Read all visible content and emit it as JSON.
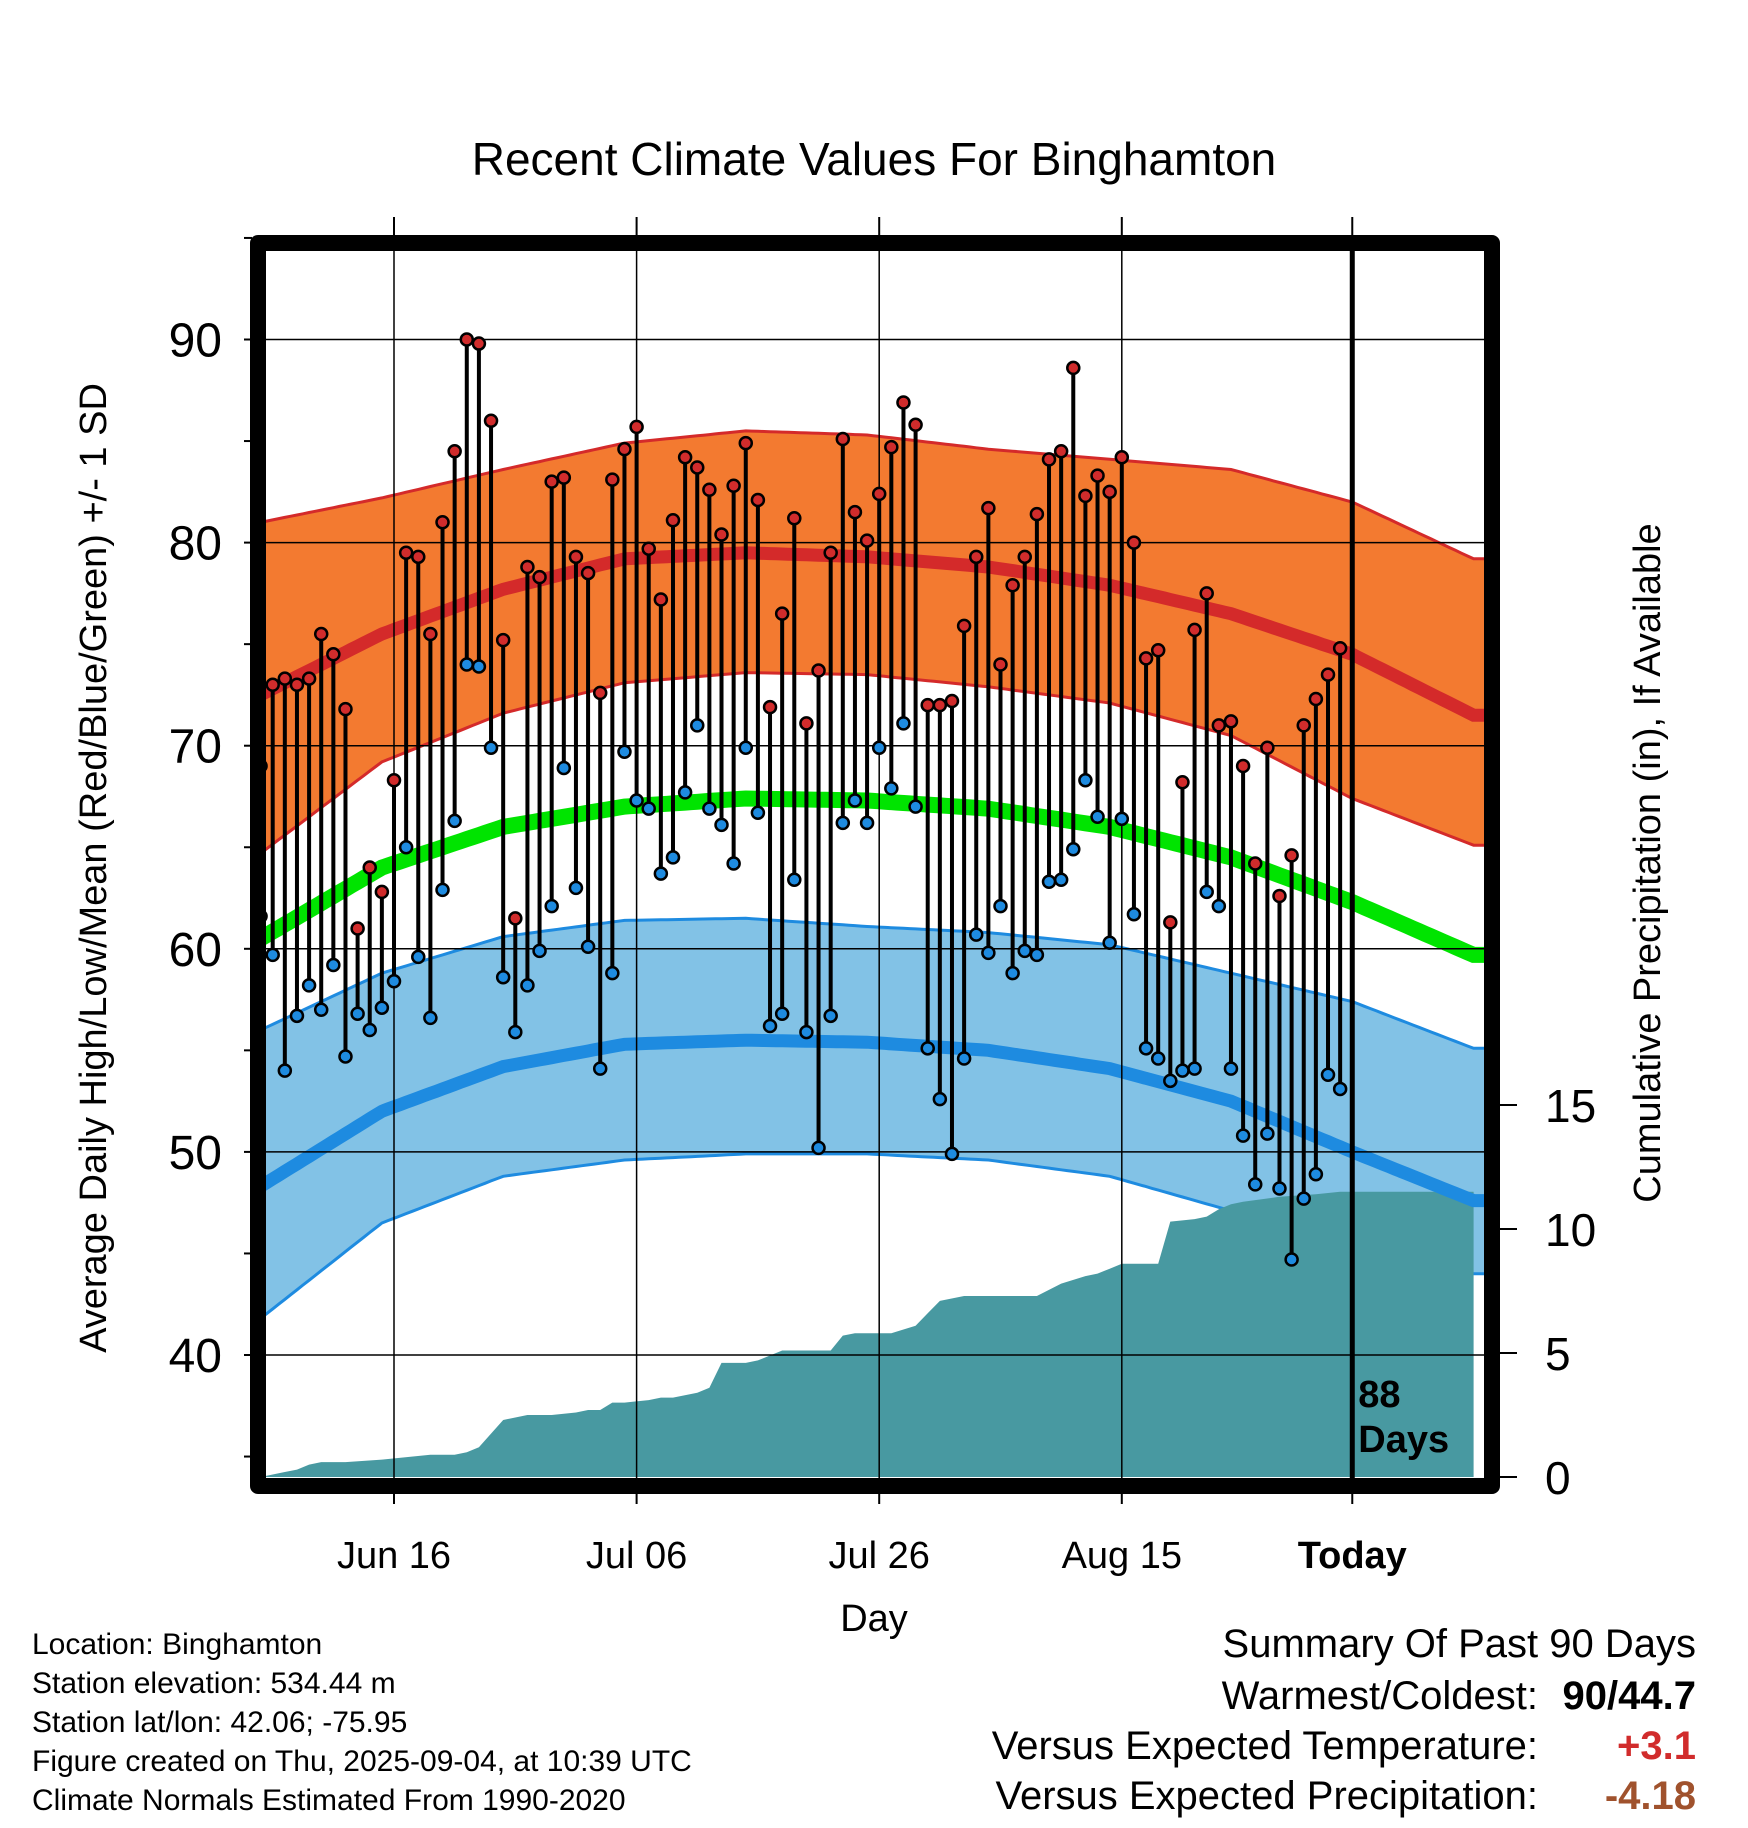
{
  "chart_data": {
    "type": "line",
    "title": "Recent Climate Values For Binghamton",
    "xlabel": "Day",
    "ylabel": "Average Daily High/Low/Mean (Red/Blue/Green) +/- 1 SD",
    "y2label": "Cumulative Precipitation (in), If Available",
    "ylim": [
      35,
      95
    ],
    "y_ticks": [
      "40",
      "50",
      "60",
      "70",
      "80",
      "90"
    ],
    "y2lim": [
      0,
      20
    ],
    "y2_ticks": [
      "0",
      "5",
      "10",
      "15"
    ],
    "x_ticks": [
      {
        "label": "Jun 16",
        "day": 12
      },
      {
        "label": "Jul 06",
        "day": 32
      },
      {
        "label": "Jul 26",
        "day": 52
      },
      {
        "label": "Aug 15",
        "day": 72
      },
      {
        "label": "Today",
        "day": 91
      }
    ],
    "today_day": 91,
    "today_annotation": [
      "88",
      "Days"
    ],
    "grid": true,
    "normals": {
      "days": [
        1,
        11,
        21,
        31,
        41,
        51,
        61,
        71,
        81,
        91,
        101
      ],
      "high": [
        72.5,
        75.5,
        77.7,
        79.2,
        79.5,
        79.3,
        78.8,
        77.9,
        76.5,
        74.5,
        71.5
      ],
      "high_upper": [
        81,
        82.2,
        83.6,
        84.9,
        85.5,
        85.3,
        84.6,
        84.1,
        83.6,
        82,
        79.2
      ],
      "high_lower": [
        64.7,
        69.2,
        71.6,
        73.1,
        73.6,
        73.5,
        72.9,
        72.1,
        70.5,
        67.4,
        65.1
      ],
      "mean": [
        60.5,
        64,
        66,
        67,
        67.4,
        67.3,
        66.9,
        66,
        64.5,
        62.3,
        59.7
      ],
      "low": [
        48.3,
        52,
        54.2,
        55.3,
        55.5,
        55.4,
        55,
        54.1,
        52.5,
        50,
        47.6
      ],
      "low_upper": [
        56,
        58.8,
        60.6,
        61.4,
        61.5,
        61.1,
        60.8,
        60.2,
        58.8,
        57.4,
        55.1
      ],
      "low_lower": [
        41.8,
        46.5,
        48.8,
        49.6,
        49.9,
        49.9,
        49.6,
        48.8,
        47.1,
        44.5,
        44
      ]
    },
    "series": [
      {
        "name": "High",
        "color": "#d12c2c",
        "values": [
          69,
          73,
          73.3,
          73,
          73.3,
          75.5,
          74.5,
          71.8,
          61,
          64,
          62.8,
          68.3,
          79.5,
          79.3,
          75.5,
          81,
          84.5,
          90,
          89.8,
          86,
          75.2,
          61.5,
          78.8,
          78.3,
          83,
          83.2,
          79.3,
          78.5,
          72.6,
          83.1,
          84.6,
          85.7,
          79.7,
          77.2,
          81.1,
          84.2,
          83.7,
          82.6,
          80.4,
          82.8,
          84.9,
          82.1,
          71.9,
          76.5,
          81.2,
          71.1,
          73.7,
          79.5,
          85.1,
          81.5,
          80.1,
          82.4,
          84.7,
          86.9,
          85.8,
          72,
          72,
          72.2,
          75.9,
          79.3,
          81.7,
          74,
          77.9,
          79.3,
          81.4,
          84.1,
          84.5,
          88.6,
          82.3,
          83.3,
          82.5,
          84.2,
          80,
          74.3,
          74.7,
          61.3,
          68.2,
          75.7,
          77.5,
          71,
          71.2,
          69,
          64.2,
          69.9,
          62.6,
          64.6,
          71,
          72.3,
          73.5,
          74.8
        ]
      },
      {
        "name": "Low",
        "color": "#1e8be0",
        "values": [
          61.6,
          59.7,
          54,
          56.7,
          58.2,
          57,
          59.2,
          54.7,
          56.8,
          56,
          57.1,
          58.4,
          65,
          59.6,
          56.6,
          62.9,
          66.3,
          74,
          73.9,
          69.9,
          58.6,
          55.9,
          58.2,
          59.9,
          62.1,
          68.9,
          63,
          60.1,
          54.1,
          58.8,
          69.7,
          67.3,
          66.9,
          63.7,
          64.5,
          67.7,
          71,
          66.9,
          66.1,
          64.2,
          69.9,
          66.7,
          56.2,
          56.8,
          63.4,
          55.9,
          50.2,
          56.7,
          66.2,
          67.3,
          66.2,
          69.9,
          67.9,
          71.1,
          67,
          55.1,
          52.6,
          49.9,
          54.6,
          60.7,
          59.8,
          62.1,
          58.8,
          59.9,
          59.7,
          63.3,
          63.4,
          64.9,
          68.3,
          66.5,
          60.3,
          66.4,
          61.7,
          55.1,
          54.6,
          53.5,
          54,
          54.1,
          62.8,
          62.1,
          54.1,
          50.8,
          48.4,
          50.9,
          48.2,
          44.7,
          47.7,
          48.9,
          53.8,
          53.1
        ]
      },
      {
        "name": "Cumulative Precipitation",
        "color": "#4899a1",
        "days": [
          1,
          2,
          3,
          4,
          5,
          6,
          8,
          11,
          15,
          17,
          18,
          19,
          21,
          22,
          23,
          25,
          27,
          28,
          29,
          30,
          31,
          33,
          34,
          35,
          37,
          38,
          39,
          41,
          42,
          44,
          48,
          49,
          50,
          51,
          53,
          55,
          56,
          57,
          59,
          61,
          65,
          67,
          69,
          70,
          71,
          72,
          74,
          75,
          76,
          78,
          79,
          80,
          81,
          82,
          85,
          88,
          90,
          91,
          101
        ],
        "values": [
          0,
          0.1,
          0.2,
          0.3,
          0.5,
          0.6,
          0.6,
          0.7,
          0.9,
          0.9,
          1,
          1.2,
          2.3,
          2.4,
          2.5,
          2.5,
          2.6,
          2.7,
          2.7,
          3,
          3,
          3.1,
          3.2,
          3.2,
          3.4,
          3.6,
          4.6,
          4.6,
          4.7,
          5.1,
          5.1,
          5.7,
          5.8,
          5.8,
          5.8,
          6.1,
          6.6,
          7.1,
          7.3,
          7.3,
          7.3,
          7.8,
          8.1,
          8.2,
          8.4,
          8.6,
          8.6,
          8.6,
          10.3,
          10.4,
          10.5,
          10.8,
          11,
          11.1,
          11.3,
          11.4,
          11.5,
          11.5,
          11.5
        ]
      }
    ]
  },
  "info": {
    "location": "Location: Binghamton",
    "elevation": "Station elevation: 534.44 m",
    "latlon": "Station lat/lon: 42.06; -75.95",
    "created": "Figure created on Thu, 2025-09-04, at 10:39 UTC",
    "normals": "Climate Normals Estimated From 1990-2020"
  },
  "summary": {
    "heading": "Summary Of Past 90 Days",
    "warmest_coldest_label": "Warmest/Coldest:",
    "warmest_coldest_value": "90/44.7",
    "temp_label": "Versus Expected Temperature:",
    "temp_value": "+3.1",
    "temp_color": "#d12c2c",
    "precip_label": "Versus Expected Precipitation:",
    "precip_value": "-4.18",
    "precip_color": "#a0522d"
  },
  "colors": {
    "high_band": "#f37a30",
    "high_line": "#d42a2a",
    "mean_line": "#00e400",
    "low_band": "#82c2e6",
    "low_line": "#1e8be0",
    "precip_fill": "#4899a1"
  }
}
